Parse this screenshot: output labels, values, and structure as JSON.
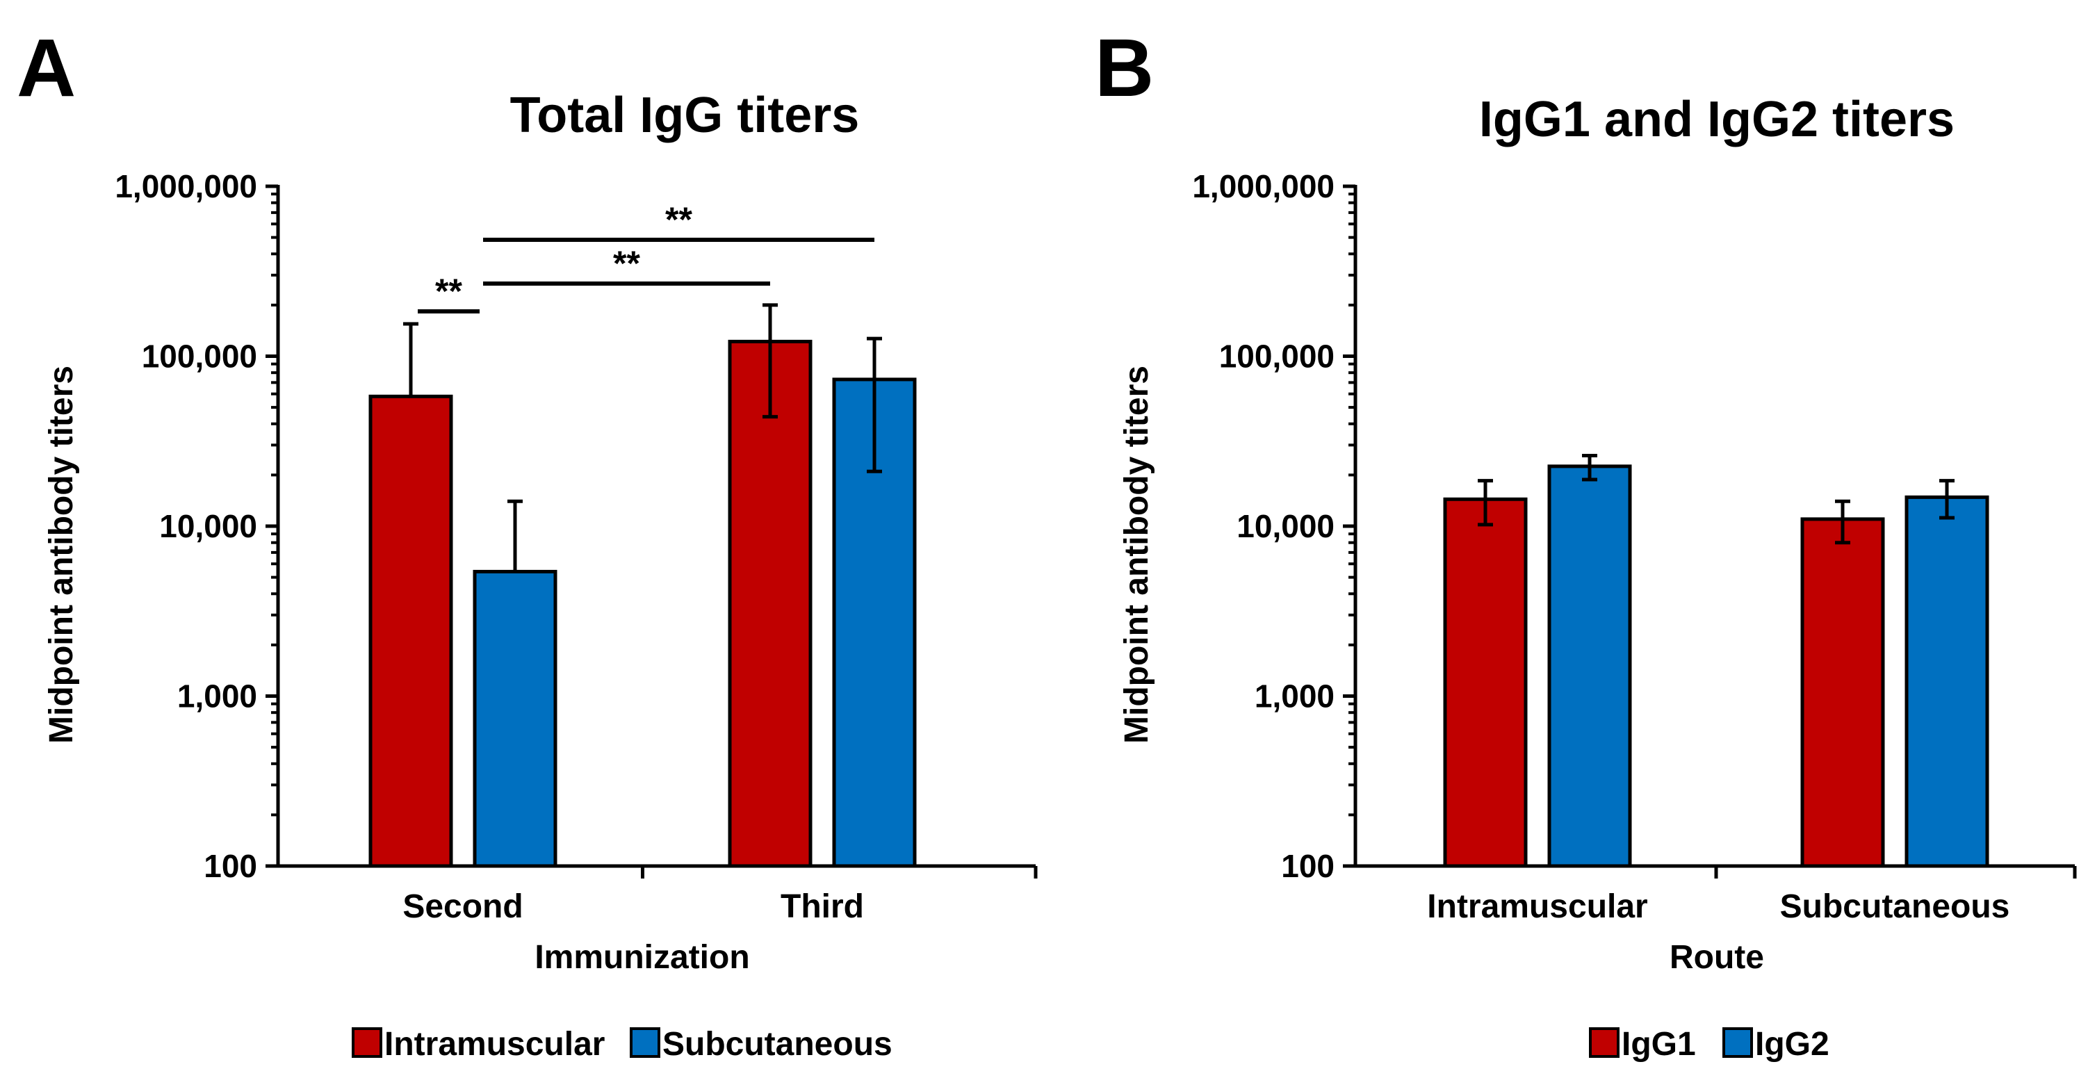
{
  "figure": {
    "panels": [
      "A",
      "B"
    ]
  },
  "chart_data": [
    {
      "panel": "A",
      "type": "bar",
      "title": "Total IgG titers",
      "xlabel": "Immunization",
      "ylabel": "Midpoint antibody titers",
      "yscale": "log",
      "ylim": [
        100,
        1000000
      ],
      "yticks": [
        100,
        1000,
        10000,
        100000,
        1000000
      ],
      "ytick_labels": [
        "100",
        "1,000",
        "10,000",
        "100,000",
        "1,000,000"
      ],
      "categories": [
        "Second",
        "Third"
      ],
      "series": [
        {
          "name": "Intramuscular",
          "color": "#C00000",
          "values": [
            58000,
            122000
          ],
          "err_high": [
            155000,
            200000
          ],
          "err_low": [
            null,
            44000
          ]
        },
        {
          "name": "Subcutaneous",
          "color": "#0070C0",
          "values": [
            5400,
            73000
          ],
          "err_high": [
            14000,
            127000
          ],
          "err_low": [
            null,
            21000
          ]
        }
      ],
      "significance": [
        {
          "label": "**",
          "from": {
            "category": 0,
            "series": 0
          },
          "to": {
            "category": 0,
            "series": 1
          }
        },
        {
          "label": "**",
          "from": {
            "category": 0,
            "series": 1
          },
          "to": {
            "category": 1,
            "series": 0
          }
        },
        {
          "label": "**",
          "from": {
            "category": 0,
            "series": 1
          },
          "to": {
            "category": 1,
            "series": 1
          }
        }
      ],
      "legend": [
        "Intramuscular",
        "Subcutaneous"
      ],
      "legend_position": "bottom"
    },
    {
      "panel": "B",
      "type": "bar",
      "title": "IgG1 and IgG2 titers",
      "xlabel": "Route",
      "ylabel": "Midpoint antibody titers",
      "yscale": "log",
      "ylim": [
        100,
        1000000
      ],
      "yticks": [
        100,
        1000,
        10000,
        100000,
        1000000
      ],
      "ytick_labels": [
        "100",
        "1,000",
        "10,000",
        "100,000",
        "1,000,000"
      ],
      "categories": [
        "Intramuscular",
        "Subcutaneous"
      ],
      "series": [
        {
          "name": "IgG1",
          "color": "#C00000",
          "values": [
            14400,
            11000
          ],
          "err_high": [
            18500,
            14000
          ],
          "err_low": [
            10200,
            8000
          ]
        },
        {
          "name": "IgG2",
          "color": "#0070C0",
          "values": [
            22500,
            14800
          ],
          "err_high": [
            26000,
            18500
          ],
          "err_low": [
            18800,
            11200
          ]
        }
      ],
      "significance": [],
      "legend": [
        "IgG1",
        "IgG2"
      ],
      "legend_position": "bottom"
    }
  ]
}
